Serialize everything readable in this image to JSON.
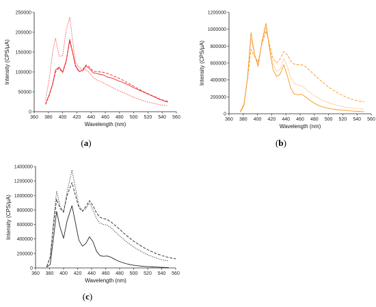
{
  "chart_data": [
    {
      "panel": "a",
      "caption": "(a)",
      "type": "line",
      "xlabel": "Wavelength (nm)",
      "ylabel": "Intensity (CPS/µA)",
      "xlim": [
        360,
        560
      ],
      "ylim": [
        0,
        250000
      ],
      "xticks": [
        360,
        380,
        400,
        420,
        440,
        460,
        480,
        500,
        520,
        540,
        560
      ],
      "yticks": [
        0,
        50000,
        100000,
        150000,
        200000,
        250000
      ],
      "color": "#e8262b",
      "grid": false,
      "series": [
        {
          "style": "solid",
          "x": [
            376,
            381,
            386,
            390,
            395,
            400,
            405,
            410,
            414,
            418,
            423,
            428,
            433,
            438,
            443,
            448,
            453,
            458,
            463,
            468,
            473,
            478,
            483,
            488,
            493,
            498,
            503,
            508,
            513,
            518,
            523,
            528,
            533,
            538,
            543,
            548
          ],
          "y": [
            20000,
            42000,
            70000,
            105000,
            112000,
            100000,
            128000,
            182000,
            150000,
            117000,
            102000,
            103000,
            115000,
            108000,
            98000,
            96000,
            94000,
            92000,
            87000,
            85000,
            82000,
            78000,
            75000,
            71000,
            67000,
            62000,
            58000,
            54000,
            50000,
            46000,
            42000,
            38000,
            34000,
            30000,
            27000,
            24000
          ]
        },
        {
          "style": "dashed",
          "x": [
            376,
            381,
            386,
            390,
            395,
            400,
            405,
            410,
            414,
            418,
            423,
            428,
            433,
            438,
            443,
            448,
            453,
            458,
            463,
            468,
            473,
            478,
            483,
            488,
            493,
            498,
            503,
            508,
            513,
            518,
            523,
            528,
            533,
            538,
            543,
            548
          ],
          "y": [
            18000,
            40000,
            68000,
            100000,
            110000,
            98000,
            125000,
            178000,
            148000,
            115000,
            100000,
            105000,
            118000,
            112000,
            102000,
            101000,
            100000,
            99000,
            96000,
            93000,
            89000,
            85000,
            81000,
            76000,
            71000,
            66000,
            61000,
            56000,
            51000,
            47000,
            43000,
            39000,
            35000,
            31000,
            28000,
            26000
          ]
        },
        {
          "style": "dotted",
          "x": [
            376,
            381,
            386,
            390,
            395,
            400,
            405,
            410,
            414,
            418,
            423,
            428,
            433,
            438,
            443,
            448,
            453,
            458,
            463,
            468,
            473,
            478,
            483,
            488,
            493,
            498,
            503,
            508,
            513,
            518,
            523,
            528,
            533,
            538,
            543,
            548
          ],
          "y": [
            30000,
            80000,
            150000,
            185000,
            140000,
            140000,
            205000,
            238000,
            180000,
            125000,
            112000,
            105000,
            105000,
            98000,
            86000,
            80000,
            76000,
            72000,
            67000,
            63000,
            58000,
            54000,
            50000,
            46000,
            42000,
            38000,
            34000,
            31000,
            28000,
            25000,
            23000,
            21000,
            19000,
            17000,
            16000,
            15000
          ]
        }
      ]
    },
    {
      "panel": "b",
      "caption": "(b)",
      "type": "line",
      "xlabel": "Wavelength (nm)",
      "ylabel": "Intensity (CPS/µA)",
      "xlim": [
        360,
        560
      ],
      "ylim": [
        0,
        1200000
      ],
      "xticks": [
        360,
        380,
        400,
        420,
        440,
        460,
        480,
        500,
        520,
        540,
        560
      ],
      "yticks": [
        0,
        200000,
        400000,
        600000,
        800000,
        1000000,
        1200000
      ],
      "color": "#f7941d",
      "grid": false,
      "series": [
        {
          "style": "solid",
          "x": [
            376,
            381,
            386,
            391,
            396,
            401,
            406,
            412,
            417,
            422,
            427,
            432,
            437,
            442,
            447,
            452,
            457,
            462,
            467,
            472,
            477,
            482,
            487,
            492,
            497,
            502,
            507,
            512,
            517,
            522,
            527,
            532,
            537,
            542,
            547,
            550
          ],
          "y": [
            20000,
            100000,
            420000,
            960000,
            700000,
            560000,
            840000,
            1070000,
            760000,
            520000,
            440000,
            470000,
            580000,
            450000,
            300000,
            230000,
            225000,
            230000,
            205000,
            170000,
            140000,
            115000,
            95000,
            80000,
            70000,
            62000,
            55000,
            49000,
            44000,
            40000,
            36000,
            33000,
            30000,
            28000,
            26000,
            25000
          ]
        },
        {
          "style": "dashed",
          "x": [
            376,
            381,
            386,
            391,
            396,
            401,
            406,
            412,
            417,
            422,
            427,
            432,
            437,
            442,
            447,
            452,
            457,
            462,
            467,
            472,
            477,
            482,
            487,
            492,
            497,
            502,
            507,
            512,
            517,
            522,
            527,
            532,
            537,
            542,
            547,
            550
          ],
          "y": [
            30000,
            110000,
            410000,
            760000,
            680000,
            610000,
            820000,
            980000,
            820000,
            650000,
            600000,
            650000,
            735000,
            700000,
            620000,
            585000,
            580000,
            580000,
            560000,
            525000,
            485000,
            445000,
            405000,
            370000,
            335000,
            305000,
            278000,
            252000,
            228000,
            208000,
            190000,
            175000,
            162000,
            152000,
            145000,
            140000
          ]
        },
        {
          "style": "dotted",
          "x": [
            376,
            381,
            386,
            391,
            396,
            401,
            406,
            412,
            417,
            422,
            427,
            432,
            437,
            442,
            447,
            452,
            457,
            462,
            467,
            472,
            477,
            482,
            487,
            492,
            497,
            502,
            507,
            512,
            517,
            522,
            527,
            532,
            537,
            542,
            547,
            550
          ],
          "y": [
            25000,
            110000,
            440000,
            880000,
            700000,
            580000,
            830000,
            1020000,
            800000,
            580000,
            500000,
            530000,
            650000,
            560000,
            420000,
            360000,
            340000,
            330000,
            300000,
            265000,
            232000,
            205000,
            180000,
            158000,
            140000,
            125000,
            112000,
            100000,
            90000,
            82000,
            75000,
            69000,
            64000,
            60000,
            57000,
            55000
          ]
        }
      ]
    },
    {
      "panel": "c",
      "caption": "(c)",
      "type": "line",
      "xlabel": "Wavelength (nm)",
      "ylabel": "Intensity (CPS/µA)",
      "xlim": [
        360,
        560
      ],
      "ylim": [
        0,
        1400000
      ],
      "xticks": [
        360,
        380,
        400,
        420,
        440,
        460,
        480,
        500,
        520,
        540,
        560
      ],
      "yticks": [
        0,
        200000,
        400000,
        600000,
        800000,
        1000000,
        1200000,
        1400000
      ],
      "color": "#222222",
      "grid": false,
      "series": [
        {
          "style": "solid",
          "x": [
            376,
            381,
            386,
            390,
            395,
            400,
            405,
            412,
            417,
            422,
            427,
            432,
            437,
            442,
            447,
            452,
            457,
            462,
            467,
            472,
            477,
            482,
            487,
            492,
            497,
            502,
            507,
            512,
            517,
            522,
            527,
            532,
            537,
            542,
            547,
            550
          ],
          "y": [
            10000,
            50000,
            450000,
            780000,
            560000,
            410000,
            650000,
            860000,
            620000,
            380000,
            300000,
            340000,
            430000,
            360000,
            230000,
            170000,
            160000,
            165000,
            150000,
            125000,
            100000,
            80000,
            65000,
            52000,
            42000,
            35000,
            29000,
            24000,
            20000,
            17000,
            14000,
            12000,
            10000,
            8000,
            6000,
            5000
          ]
        },
        {
          "style": "dashed",
          "x": [
            376,
            381,
            386,
            390,
            395,
            400,
            405,
            412,
            417,
            422,
            427,
            432,
            437,
            442,
            447,
            452,
            457,
            462,
            467,
            472,
            477,
            482,
            487,
            492,
            497,
            502,
            507,
            512,
            517,
            522,
            527,
            532,
            537,
            542,
            547,
            560
          ],
          "y": [
            20000,
            150000,
            620000,
            950000,
            820000,
            780000,
            1000000,
            1180000,
            1000000,
            830000,
            780000,
            850000,
            930000,
            860000,
            760000,
            700000,
            680000,
            670000,
            640000,
            600000,
            560000,
            515000,
            470000,
            430000,
            392000,
            357000,
            325000,
            295000,
            267000,
            242000,
            220000,
            200000,
            182000,
            166000,
            152000,
            125000
          ]
        },
        {
          "style": "dotted",
          "x": [
            376,
            381,
            386,
            390,
            395,
            400,
            405,
            412,
            417,
            422,
            427,
            432,
            437,
            442,
            447,
            452,
            457,
            462,
            467,
            472,
            477,
            482,
            487,
            492,
            497,
            502,
            507,
            512,
            517,
            522,
            527,
            532,
            537,
            542,
            547,
            550
          ],
          "y": [
            20000,
            150000,
            680000,
            1060000,
            860000,
            760000,
            1050000,
            1350000,
            1100000,
            860000,
            790000,
            820000,
            900000,
            800000,
            680000,
            620000,
            600000,
            590000,
            560000,
            515000,
            470000,
            425000,
            385000,
            345000,
            310000,
            278000,
            248000,
            220000,
            196000,
            174000,
            155000,
            138000,
            123000,
            110000,
            100000,
            95000
          ]
        }
      ]
    }
  ]
}
